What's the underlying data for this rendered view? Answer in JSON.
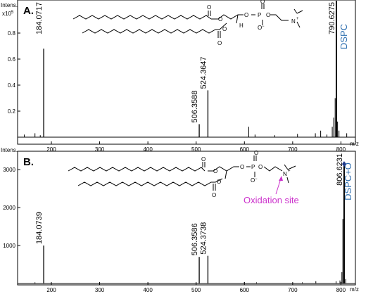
{
  "colors": {
    "frame": "#000000",
    "dspc_label": "#2e6fb0",
    "oxidation_label": "#cc33cc",
    "peak_marker": "#1f3a8a"
  },
  "chart_data": [
    {
      "type": "bar",
      "panel_label": "A.",
      "y_title": "Intens.",
      "y_multiplier": "x10",
      "y_multiplier_exp": "5",
      "x_unit": "m/z",
      "compound_label": "DSPC",
      "xlim": [
        130,
        830
      ],
      "ylim": [
        0,
        1.0
      ],
      "x_ticks": [
        200,
        300,
        400,
        500,
        600,
        700,
        800
      ],
      "y_ticks": [
        {
          "value": 0.2,
          "label": "0.2"
        },
        {
          "value": 0.4,
          "label": "0.4"
        },
        {
          "value": 0.6,
          "label": "0.6"
        },
        {
          "value": 0.8,
          "label": "0.8"
        }
      ],
      "peaks": [
        {
          "mz": 184.0717,
          "value": 0.68,
          "label": "184.0717"
        },
        {
          "mz": 506.3588,
          "value": 0.1,
          "label": "506.3588"
        },
        {
          "mz": 524.3647,
          "value": 0.36,
          "label": "524.3647"
        },
        {
          "mz": 790.6275,
          "value": 1.05,
          "label": "790.6275"
        }
      ],
      "minor_peaks": [
        {
          "mz": 144,
          "value": 0.02
        },
        {
          "mz": 166,
          "value": 0.03
        },
        {
          "mz": 177,
          "value": 0.015
        },
        {
          "mz": 609,
          "value": 0.08
        },
        {
          "mz": 622,
          "value": 0.02
        },
        {
          "mz": 663,
          "value": 0.015
        },
        {
          "mz": 710,
          "value": 0.025
        },
        {
          "mz": 747,
          "value": 0.03
        },
        {
          "mz": 758,
          "value": 0.05
        },
        {
          "mz": 771,
          "value": 0.02
        },
        {
          "mz": 782,
          "value": 0.08
        },
        {
          "mz": 785,
          "value": 0.15
        },
        {
          "mz": 788,
          "value": 0.3
        },
        {
          "mz": 793,
          "value": 0.12
        },
        {
          "mz": 796,
          "value": 0.05
        },
        {
          "mz": 812,
          "value": 0.03
        }
      ]
    },
    {
      "type": "bar",
      "panel_label": "B.",
      "y_title": "Intens.",
      "x_unit": "m/z",
      "compound_label": "DSPC+O",
      "annotation": "Oxidation site",
      "xlim": [
        130,
        830
      ],
      "ylim": [
        0,
        3300
      ],
      "x_ticks": [
        200,
        300,
        400,
        500,
        600,
        700,
        800
      ],
      "y_ticks": [
        {
          "value": 1000,
          "label": "1000"
        },
        {
          "value": 2000,
          "label": "2000"
        },
        {
          "value": 3000,
          "label": "3000"
        }
      ],
      "peaks": [
        {
          "mz": 184.0739,
          "value": 1000,
          "label": "184.0739"
        },
        {
          "mz": 506.3586,
          "value": 700,
          "label": "506.3586"
        },
        {
          "mz": 524.3738,
          "value": 730,
          "label": "524.3738"
        },
        {
          "mz": 806.6231,
          "value": 3150,
          "label": "806.6231"
        }
      ],
      "minor_peaks": [
        {
          "mz": 166,
          "value": 30
        },
        {
          "mz": 600,
          "value": 40
        },
        {
          "mz": 625,
          "value": 30
        },
        {
          "mz": 720,
          "value": 30
        },
        {
          "mz": 748,
          "value": 60
        },
        {
          "mz": 790,
          "value": 60
        },
        {
          "mz": 798,
          "value": 80
        },
        {
          "mz": 802,
          "value": 300
        },
        {
          "mz": 804,
          "value": 1700
        },
        {
          "mz": 810,
          "value": 120
        }
      ]
    }
  ]
}
